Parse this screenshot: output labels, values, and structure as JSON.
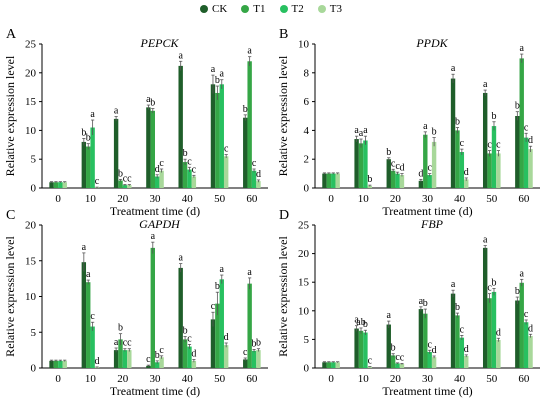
{
  "colors": {
    "CK": "#1f5e2a",
    "T1": "#35a646",
    "T2": "#28c060",
    "T3": "#a8d89a"
  },
  "legend": [
    "CK",
    "T1",
    "T2",
    "T3"
  ],
  "chart_data": [
    {
      "type": "bar",
      "panel_letter": "A",
      "title": "PEPCK",
      "xlabel": "Treatment time (d)",
      "ylabel": "Relative expression level",
      "ylim": [
        0,
        25
      ],
      "yticks": [
        0,
        5,
        10,
        15,
        20,
        25
      ],
      "categories": [
        "0",
        "10",
        "20",
        "30",
        "40",
        "50",
        "60"
      ],
      "series": [
        {
          "name": "CK",
          "values": [
            1,
            8,
            12,
            14,
            21.2,
            18,
            12.2
          ],
          "errors": [
            0.1,
            0.6,
            0.4,
            0.4,
            0.8,
            1.6,
            0.5
          ],
          "labels": [
            "",
            "b",
            "a",
            "a",
            "a",
            "a",
            "b"
          ]
        },
        {
          "name": "T1",
          "values": [
            1,
            7.2,
            1.3,
            13.4,
            4.5,
            16.5,
            22
          ],
          "errors": [
            0.1,
            0.5,
            0.2,
            0.4,
            0.5,
            1.2,
            0.8
          ],
          "labels": [
            "",
            "b",
            "b",
            "b",
            "b",
            "b",
            "a"
          ]
        },
        {
          "name": "T2",
          "values": [
            1,
            10.5,
            0.5,
            2,
            3.2,
            18,
            3
          ],
          "errors": [
            0.1,
            1.3,
            0.1,
            0.3,
            0.4,
            0.8,
            0.3
          ],
          "labels": [
            "",
            "a",
            "c",
            "d",
            "c",
            "a",
            "c"
          ]
        },
        {
          "name": "T3",
          "values": [
            1,
            0.1,
            0.5,
            3,
            2,
            5.5,
            1.2
          ],
          "errors": [
            0.1,
            0.05,
            0.1,
            0.3,
            0.2,
            0.3,
            0.2
          ],
          "labels": [
            "",
            "c",
            "c",
            "c",
            "c",
            "c",
            "d"
          ]
        }
      ]
    },
    {
      "type": "bar",
      "panel_letter": "B",
      "title": "PPDK",
      "xlabel": "Treatment time (d)",
      "ylabel": "Relative expression level",
      "ylim": [
        0,
        10
      ],
      "yticks": [
        0,
        2,
        4,
        6,
        8,
        10
      ],
      "categories": [
        "0",
        "10",
        "20",
        "30",
        "40",
        "50",
        "60"
      ],
      "series": [
        {
          "name": "CK",
          "values": [
            1,
            3.4,
            2,
            0.5,
            7.6,
            6.6,
            5
          ],
          "errors": [
            0.05,
            0.2,
            0.1,
            0.1,
            0.3,
            0.2,
            0.3
          ],
          "labels": [
            "",
            "a",
            "b",
            "d",
            "a",
            "a",
            "b"
          ]
        },
        {
          "name": "T1",
          "values": [
            1,
            3.1,
            1.2,
            3.7,
            4,
            2.4,
            9
          ],
          "errors": [
            0.05,
            0.3,
            0.1,
            0.2,
            0.2,
            0.2,
            0.3
          ],
          "labels": [
            "",
            "a",
            "c",
            "a",
            "b",
            "c",
            "a"
          ]
        },
        {
          "name": "T2",
          "values": [
            1,
            3.3,
            1,
            0.9,
            2.5,
            4.3,
            3.5
          ],
          "errors": [
            0.05,
            0.3,
            0.1,
            0.1,
            0.2,
            0.3,
            0.3
          ],
          "labels": [
            "",
            "a",
            "c",
            "c",
            "c",
            "b",
            "c"
          ]
        },
        {
          "name": "T3",
          "values": [
            1,
            0.15,
            0.9,
            3.2,
            0.6,
            2.4,
            2.7
          ],
          "errors": [
            0.05,
            0.05,
            0.1,
            0.3,
            0.1,
            0.2,
            0.2
          ],
          "labels": [
            "",
            "b",
            "d",
            "b",
            "d",
            "c",
            "d"
          ]
        }
      ]
    },
    {
      "type": "bar",
      "panel_letter": "C",
      "title": "GAPDH",
      "xlabel": "Treatment time (d)",
      "ylabel": "Relative expression level",
      "ylim": [
        0,
        20
      ],
      "yticks": [
        0,
        5,
        10,
        15,
        20
      ],
      "categories": [
        "0",
        "10",
        "20",
        "30",
        "40",
        "50",
        "60"
      ],
      "series": [
        {
          "name": "CK",
          "values": [
            1,
            14.8,
            2.5,
            0.3,
            14,
            6.8,
            1.2
          ],
          "errors": [
            0.1,
            1.3,
            0.3,
            0.1,
            0.6,
            1,
            0.2
          ],
          "labels": [
            "",
            "a",
            "a",
            "c",
            "a",
            "c",
            "c"
          ]
        },
        {
          "name": "T1",
          "values": [
            1,
            12,
            4,
            16.8,
            4,
            9,
            11.8
          ],
          "errors": [
            0.1,
            0.3,
            0.8,
            0.8,
            0.4,
            1.6,
            0.8
          ],
          "labels": [
            "",
            "a",
            "b",
            "a",
            "b",
            "b",
            "a"
          ]
        },
        {
          "name": "T2",
          "values": [
            1,
            5.8,
            2.5,
            0.8,
            3,
            12.4,
            2.4
          ],
          "errors": [
            0.1,
            0.6,
            0.2,
            0.2,
            0.3,
            0.6,
            0.2
          ],
          "labels": [
            "",
            "c",
            "c",
            "b",
            "c",
            "a",
            "b"
          ]
        },
        {
          "name": "T3",
          "values": [
            1,
            0.1,
            2.5,
            1.5,
            1,
            3.2,
            2.5
          ],
          "errors": [
            0.1,
            0.05,
            0.2,
            0.2,
            0.2,
            0.3,
            0.2
          ],
          "labels": [
            "",
            "d",
            "c",
            "c",
            "d",
            "d",
            "b"
          ]
        }
      ]
    },
    {
      "type": "bar",
      "panel_letter": "D",
      "title": "FBP",
      "xlabel": "Treatment time (d)",
      "ylabel": "Relative expression level",
      "ylim": [
        0,
        25
      ],
      "yticks": [
        0,
        5,
        10,
        15,
        20,
        25
      ],
      "categories": [
        "0",
        "10",
        "20",
        "30",
        "40",
        "50",
        "60"
      ],
      "series": [
        {
          "name": "CK",
          "values": [
            1,
            6.9,
            7.6,
            10.3,
            13,
            21,
            11.8
          ],
          "errors": [
            0.1,
            0.5,
            0.6,
            0.4,
            0.6,
            0.4,
            0.6
          ],
          "labels": [
            "",
            "a",
            "a",
            "a",
            "a",
            "a",
            "b"
          ]
        },
        {
          "name": "T1",
          "values": [
            1,
            6.5,
            2.2,
            9.5,
            9.2,
            12.2,
            14.9
          ],
          "errors": [
            0.1,
            0.5,
            0.3,
            0.8,
            0.4,
            0.8,
            0.6
          ],
          "labels": [
            "",
            "ab",
            "b",
            "b",
            "b",
            "c",
            "a"
          ]
        },
        {
          "name": "T2",
          "values": [
            1,
            6.2,
            0.8,
            2.8,
            5.3,
            13.3,
            8
          ],
          "errors": [
            0.1,
            0.4,
            0.1,
            0.3,
            0.4,
            0.6,
            0.4
          ],
          "labels": [
            "",
            "b",
            "c",
            "c",
            "c",
            "b",
            "c"
          ]
        },
        {
          "name": "T3",
          "values": [
            1,
            0.2,
            0.7,
            1.9,
            2.1,
            4.9,
            5.6
          ],
          "errors": [
            0.1,
            0.05,
            0.1,
            0.2,
            0.2,
            0.3,
            0.3
          ],
          "labels": [
            "",
            "c",
            "c",
            "d",
            "d",
            "d",
            "d"
          ]
        }
      ]
    }
  ]
}
